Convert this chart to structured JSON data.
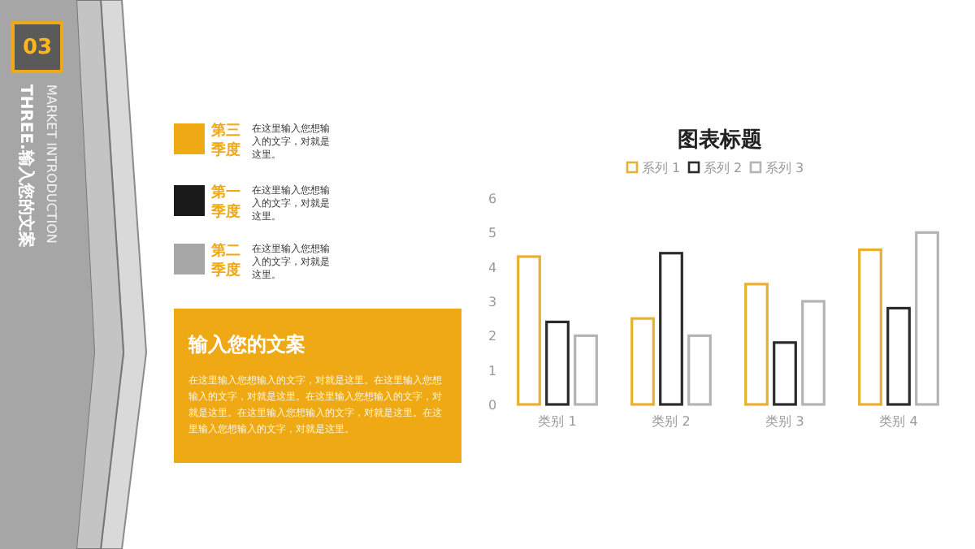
{
  "chart_data": [
    {
      "type": "other",
      "annotations": [
        "03",
        "MARKET INTRODUCTION",
        "THREE.输入您的文案",
        "第三季度",
        "在这里输入您想输入的文字，对就是这里。",
        "第一季度",
        "在这里输入您想输入的文字，对就是这里。",
        "第二季度",
        "在这里输入您想输入的文字，对就是这里。",
        "输入您的文案",
        "在这里输入您想输入的文字，对就是这里。在这里输入您想输入的文字，对就是这里。在这里输入您想输入的文字，对就是这里。在这里输入您想输入的文字，对就是这里。在这里输入您想输入的文字，对就是这里。"
      ]
    },
    {
      "type": "bar",
      "title": "图表标题",
      "categories": [
        "类别 1",
        "类别 2",
        "类别 3",
        "类别 4"
      ],
      "series": [
        {
          "name": "系列 1",
          "color": "#e8b030",
          "values": [
            4.3,
            2.5,
            3.5,
            4.5
          ]
        },
        {
          "name": "系列 2",
          "color": "#2b2b2b",
          "values": [
            2.4,
            4.4,
            1.8,
            2.8
          ]
        },
        {
          "name": "系列 3",
          "color": "#b4b4b4",
          "values": [
            2,
            2,
            3,
            5
          ]
        }
      ],
      "ylim": [
        0,
        6
      ],
      "yticks": [
        0,
        1,
        2,
        3,
        4,
        5,
        6
      ],
      "grid": false,
      "legend": "top"
    }
  ]
}
